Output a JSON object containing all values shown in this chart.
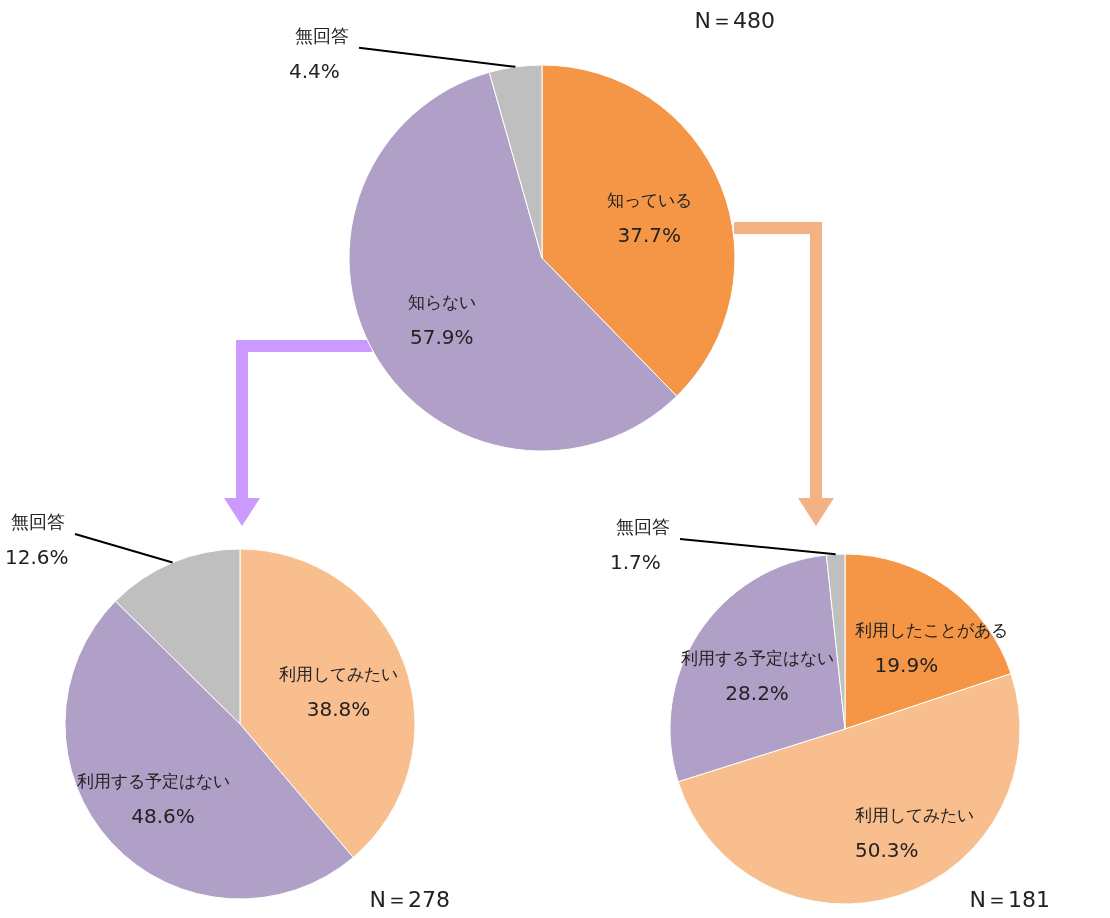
{
  "chart_data": [
    {
      "type": "pie",
      "categories": [
        "知っている",
        "知らない",
        "無回答"
      ],
      "values": [
        37.7,
        57.9,
        4.4
      ],
      "colors": [
        "#f59646",
        "#b09fc6",
        "#bfbfbf"
      ],
      "value_labels": [
        "37.7%",
        "57.9%",
        "4.4%"
      ],
      "annotations": [
        "N＝480"
      ]
    },
    {
      "type": "pie",
      "categories": [
        "利用してみたい",
        "利用する予定はない",
        "無回答"
      ],
      "values": [
        38.8,
        48.6,
        12.6
      ],
      "colors": [
        "#f8be8e",
        "#b09fc6",
        "#bfbfbf"
      ],
      "value_labels": [
        "38.8%",
        "48.6%",
        "12.6%"
      ],
      "annotations": [
        "N＝278"
      ]
    },
    {
      "type": "pie",
      "categories": [
        "利用したことがある",
        "利用してみたい",
        "利用する予定はない",
        "無回答"
      ],
      "values": [
        19.9,
        50.3,
        28.2,
        1.7
      ],
      "colors": [
        "#f59646",
        "#f8be8e",
        "#b09fc6",
        "#bfbfbf"
      ],
      "value_labels": [
        "19.9%",
        "50.3%",
        "28.2%",
        "1.7%"
      ],
      "annotations": [
        "N＝181"
      ]
    }
  ]
}
